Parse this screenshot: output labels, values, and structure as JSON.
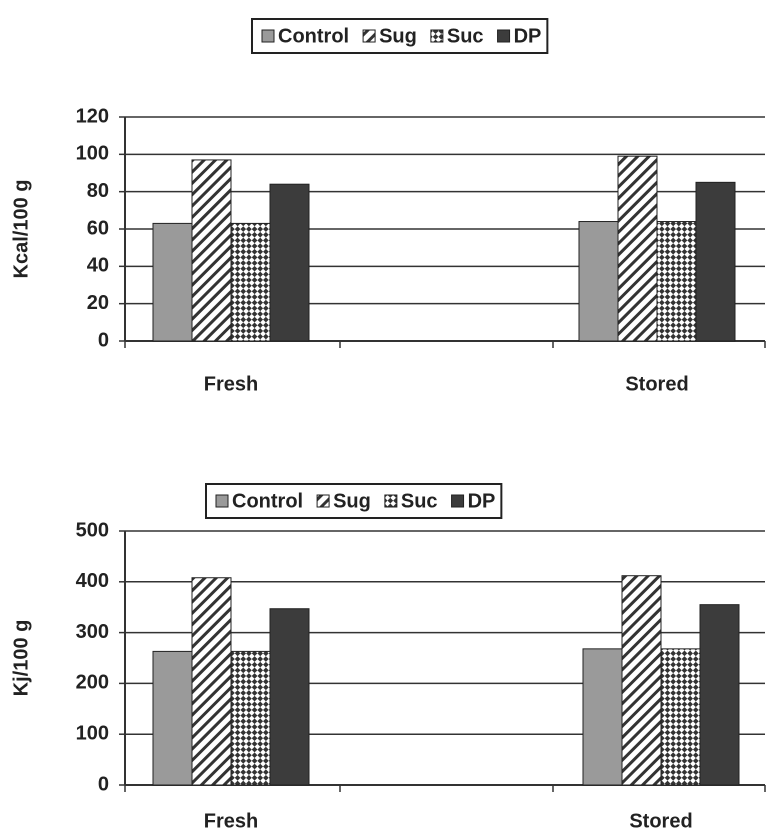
{
  "chart_data": [
    {
      "type": "bar",
      "ylabel": "Kcal/100 g",
      "categories": [
        "Fresh",
        "Stored"
      ],
      "series": [
        {
          "name": "Control",
          "color": "#9a9a9a",
          "pattern": "solid",
          "values": [
            63,
            64
          ]
        },
        {
          "name": "Sug",
          "color": "#333333",
          "pattern": "hatch",
          "values": [
            97,
            99
          ]
        },
        {
          "name": "Suc",
          "color": "#333333",
          "pattern": "checker",
          "values": [
            63,
            64
          ]
        },
        {
          "name": "DP",
          "color": "#3c3c3c",
          "pattern": "solid",
          "values": [
            84,
            85
          ]
        }
      ],
      "ylim": [
        0,
        120
      ],
      "yticks": [
        0,
        20,
        40,
        60,
        80,
        100,
        120
      ],
      "grid": true,
      "legend": "top"
    },
    {
      "type": "bar",
      "ylabel": "Kj/100 g",
      "categories": [
        "Fresh",
        "Stored"
      ],
      "series": [
        {
          "name": "Control",
          "color": "#9a9a9a",
          "pattern": "solid",
          "values": [
            263,
            268
          ]
        },
        {
          "name": "Sug",
          "color": "#333333",
          "pattern": "hatch",
          "values": [
            408,
            412
          ]
        },
        {
          "name": "Suc",
          "color": "#333333",
          "pattern": "checker",
          "values": [
            263,
            268
          ]
        },
        {
          "name": "DP",
          "color": "#3c3c3c",
          "pattern": "solid",
          "values": [
            347,
            355
          ]
        }
      ],
      "ylim": [
        0,
        500
      ],
      "yticks": [
        0,
        100,
        200,
        300,
        400,
        500
      ],
      "grid": true,
      "legend": "top"
    }
  ]
}
